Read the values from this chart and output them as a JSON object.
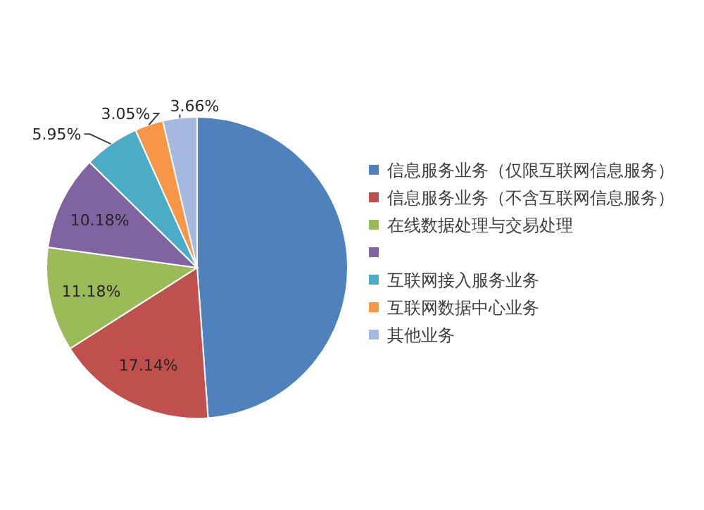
{
  "chart_data": {
    "type": "pie",
    "categories": [
      "信息服务业务（仅限互联网信息服务）",
      "信息服务业务（不含互联网信息服务）",
      "在线数据处理与交易处理",
      null,
      "互联网接入服务业务",
      "互联网数据中心业务",
      "其他业务"
    ],
    "values": [
      48.84,
      17.14,
      11.18,
      10.18,
      5.95,
      3.05,
      3.66
    ],
    "value_labels": [
      null,
      "17.14%",
      "11.18%",
      "10.18%",
      "5.95%",
      "3.05%",
      "3.66%"
    ],
    "colors": [
      "#4f81bd",
      "#c0504d",
      "#9bbb59",
      "#8064a2",
      "#4bacc6",
      "#f79646",
      "#a5b9e0"
    ],
    "legend": "right"
  }
}
